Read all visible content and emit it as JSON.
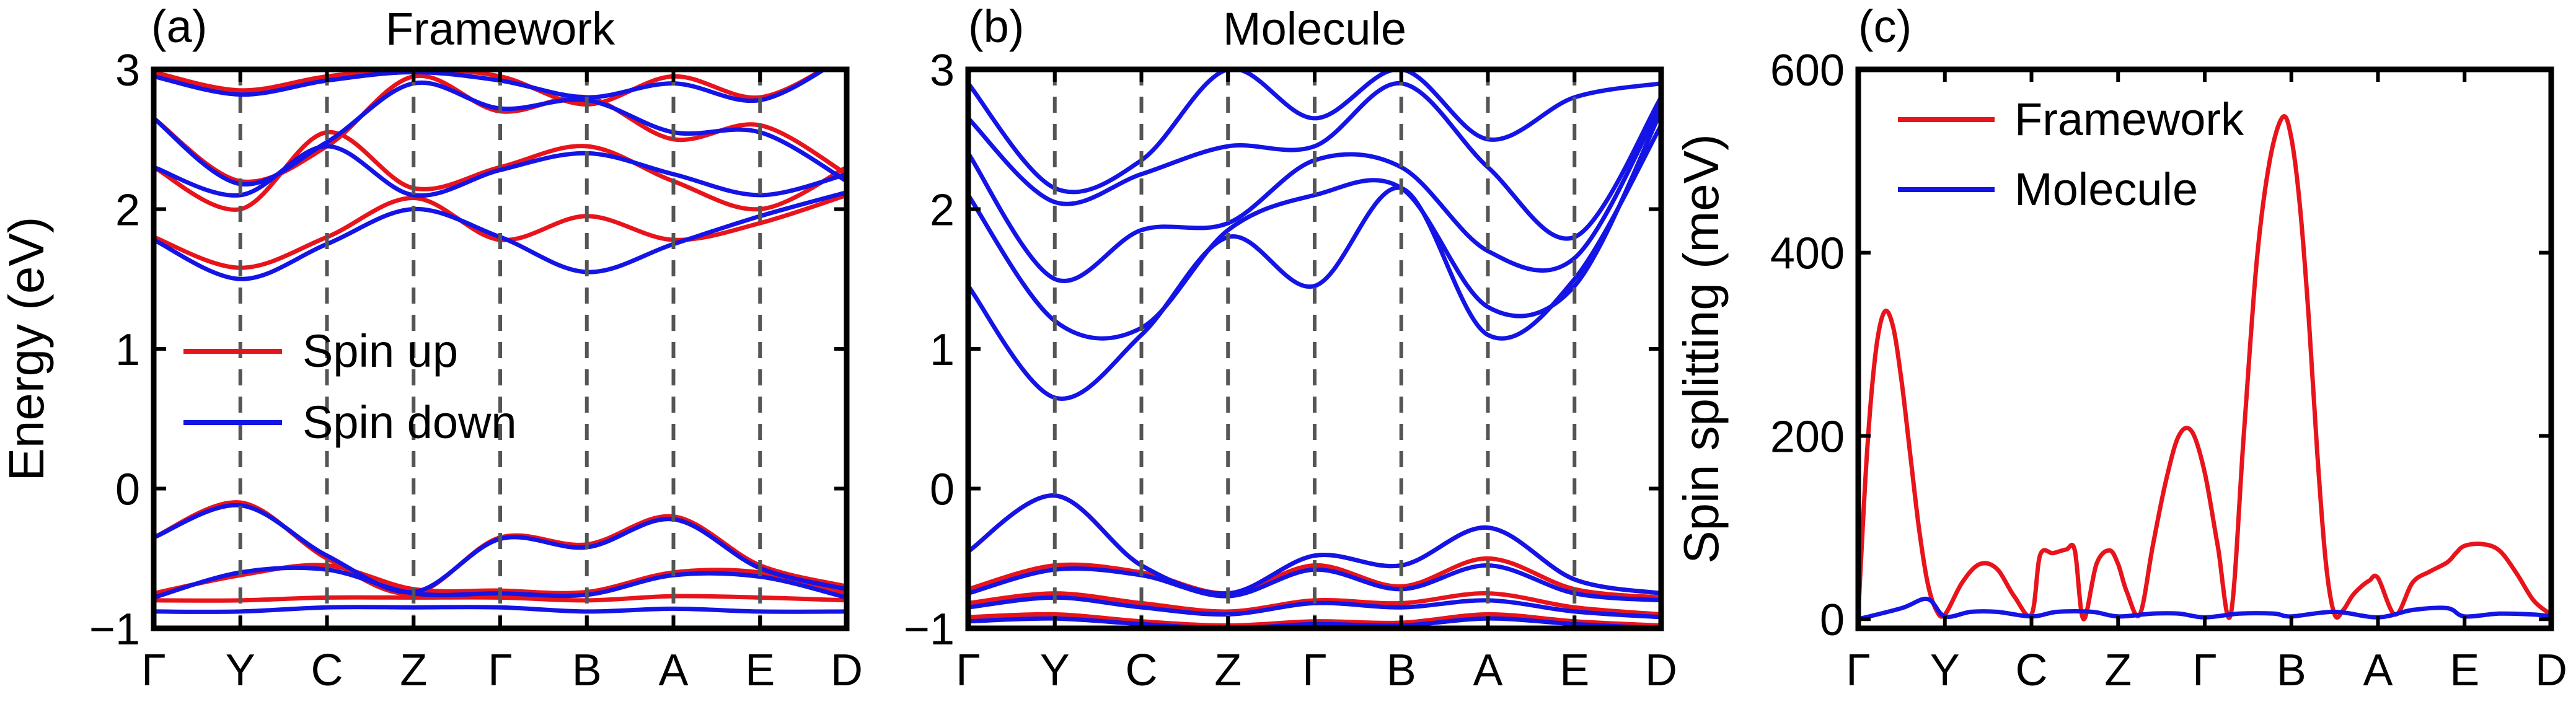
{
  "chart_data": [
    {
      "type": "line",
      "panel_label": "(a)",
      "title": "Framework",
      "ylabel": "Energy (eV)",
      "xlabel": "",
      "ylim": [
        -1,
        3
      ],
      "yticks": [
        -1,
        0,
        1,
        2,
        3
      ],
      "ytick_labels": [
        "−1",
        "0",
        "1",
        "2",
        "3"
      ],
      "kpath": [
        "Γ",
        "Y",
        "C",
        "Z",
        "Γ",
        "B",
        "A",
        "E",
        "D"
      ],
      "kpath_vlines": true,
      "legend": [
        {
          "label": "Spin up",
          "color": "#e8141b"
        },
        {
          "label": "Spin down",
          "color": "#1414e6"
        }
      ],
      "series": [
        {
          "name": "Spin up",
          "color": "#e8141b",
          "bands": [
            {
              "k": [
                0,
                1,
                2,
                3,
                4,
                5,
                6,
                7,
                8
              ],
              "e": [
                -0.35,
                -0.1,
                -0.5,
                -0.75,
                -0.35,
                -0.4,
                -0.2,
                -0.55,
                -0.7
              ]
            },
            {
              "k": [
                0,
                1,
                2,
                3,
                4,
                5,
                6,
                7,
                8
              ],
              "e": [
                -0.75,
                -0.62,
                -0.55,
                -0.72,
                -0.73,
                -0.74,
                -0.6,
                -0.6,
                -0.75
              ]
            },
            {
              "k": [
                0,
                1,
                2,
                3,
                4,
                5,
                6,
                7,
                8
              ],
              "e": [
                -0.8,
                -0.8,
                -0.78,
                -0.78,
                -0.78,
                -0.8,
                -0.77,
                -0.78,
                -0.8
              ]
            },
            {
              "k": [
                0,
                1,
                2,
                3,
                4,
                5,
                6,
                7,
                8
              ],
              "e": [
                1.8,
                1.58,
                1.8,
                2.08,
                1.78,
                1.95,
                1.78,
                1.9,
                2.1
              ]
            },
            {
              "k": [
                0,
                1,
                2,
                3,
                4,
                5,
                6,
                7,
                8
              ],
              "e": [
                2.3,
                2.0,
                2.55,
                2.15,
                2.3,
                2.45,
                2.2,
                2.0,
                2.3
              ]
            },
            {
              "k": [
                0,
                1,
                2,
                3,
                4,
                5,
                6,
                7,
                8
              ],
              "e": [
                2.65,
                2.2,
                2.45,
                2.95,
                2.7,
                2.8,
                2.5,
                2.6,
                2.25
              ]
            },
            {
              "k": [
                0,
                1,
                2,
                3,
                4,
                5,
                6,
                7,
                8
              ],
              "e": [
                2.98,
                2.85,
                2.95,
                3.0,
                2.95,
                2.75,
                2.95,
                2.8,
                3.1
              ]
            }
          ]
        },
        {
          "name": "Spin down",
          "color": "#1414e6",
          "bands": [
            {
              "k": [
                0,
                1,
                2,
                3,
                4,
                5,
                6,
                7,
                8
              ],
              "e": [
                -0.35,
                -0.12,
                -0.48,
                -0.74,
                -0.36,
                -0.42,
                -0.22,
                -0.57,
                -0.72
              ]
            },
            {
              "k": [
                0,
                1,
                2,
                3,
                4,
                5,
                6,
                7,
                8
              ],
              "e": [
                -0.78,
                -0.6,
                -0.58,
                -0.75,
                -0.75,
                -0.76,
                -0.62,
                -0.63,
                -0.78
              ]
            },
            {
              "k": [
                0,
                1,
                2,
                3,
                4,
                5,
                6,
                7,
                8
              ],
              "e": [
                -0.88,
                -0.88,
                -0.85,
                -0.85,
                -0.85,
                -0.88,
                -0.86,
                -0.88,
                -0.88
              ]
            },
            {
              "k": [
                0,
                1,
                2,
                3,
                4,
                5,
                6,
                7,
                8
              ],
              "e": [
                1.78,
                1.5,
                1.75,
                2.0,
                1.8,
                1.55,
                1.75,
                1.95,
                2.12
              ]
            },
            {
              "k": [
                0,
                1,
                2,
                3,
                4,
                5,
                6,
                7,
                8
              ],
              "e": [
                2.3,
                2.1,
                2.45,
                2.1,
                2.28,
                2.4,
                2.25,
                2.1,
                2.25
              ]
            },
            {
              "k": [
                0,
                1,
                2,
                3,
                4,
                5,
                6,
                7,
                8
              ],
              "e": [
                2.65,
                2.18,
                2.48,
                2.9,
                2.72,
                2.78,
                2.55,
                2.55,
                2.2
              ]
            },
            {
              "k": [
                0,
                1,
                2,
                3,
                4,
                5,
                6,
                7,
                8
              ],
              "e": [
                2.95,
                2.82,
                2.92,
                2.98,
                2.92,
                2.8,
                2.9,
                2.78,
                3.1
              ]
            }
          ]
        }
      ]
    },
    {
      "type": "line",
      "panel_label": "(b)",
      "title": "Molecule",
      "ylabel": "",
      "xlabel": "",
      "ylim": [
        -1,
        3
      ],
      "yticks": [
        -1,
        0,
        1,
        2,
        3
      ],
      "ytick_labels": [
        "−1",
        "0",
        "1",
        "2",
        "3"
      ],
      "kpath": [
        "Γ",
        "Y",
        "C",
        "Z",
        "Γ",
        "B",
        "A",
        "E",
        "D"
      ],
      "kpath_vlines": true,
      "series": [
        {
          "name": "Spin up",
          "color": "#e8141b",
          "bands": [
            {
              "k": [
                0,
                1,
                2,
                3,
                4,
                5,
                6,
                7,
                8
              ],
              "e": [
                -0.45,
                -0.05,
                -0.55,
                -0.75,
                -0.48,
                -0.55,
                -0.28,
                -0.65,
                -0.75
              ]
            },
            {
              "k": [
                0,
                1,
                2,
                3,
                4,
                5,
                6,
                7,
                8
              ],
              "e": [
                -0.72,
                -0.55,
                -0.6,
                -0.75,
                -0.55,
                -0.7,
                -0.5,
                -0.72,
                -0.78
              ]
            },
            {
              "k": [
                0,
                1,
                2,
                3,
                4,
                5,
                6,
                7,
                8
              ],
              "e": [
                -0.82,
                -0.75,
                -0.82,
                -0.88,
                -0.8,
                -0.82,
                -0.75,
                -0.85,
                -0.9
              ]
            },
            {
              "k": [
                0,
                1,
                2,
                3,
                4,
                5,
                6,
                7,
                8
              ],
              "e": [
                -0.92,
                -0.9,
                -0.95,
                -0.98,
                -0.95,
                -0.96,
                -0.9,
                -0.95,
                -0.98
              ]
            }
          ]
        },
        {
          "name": "Spin down",
          "color": "#1414e6",
          "bands": [
            {
              "k": [
                0,
                1,
                2,
                3,
                4,
                5,
                6,
                7,
                8
              ],
              "e": [
                -0.45,
                -0.05,
                -0.55,
                -0.75,
                -0.48,
                -0.55,
                -0.28,
                -0.65,
                -0.75
              ]
            },
            {
              "k": [
                0,
                1,
                2,
                3,
                4,
                5,
                6,
                7,
                8
              ],
              "e": [
                -0.75,
                -0.58,
                -0.62,
                -0.77,
                -0.58,
                -0.72,
                -0.55,
                -0.75,
                -0.8
              ]
            },
            {
              "k": [
                0,
                1,
                2,
                3,
                4,
                5,
                6,
                7,
                8
              ],
              "e": [
                -0.85,
                -0.78,
                -0.85,
                -0.9,
                -0.82,
                -0.85,
                -0.8,
                -0.88,
                -0.92
              ]
            },
            {
              "k": [
                0,
                1,
                2,
                3,
                4,
                5,
                6,
                7,
                8
              ],
              "e": [
                -0.95,
                -0.93,
                -0.97,
                -1.0,
                -0.97,
                -0.98,
                -0.93,
                -0.97,
                -1.0
              ]
            },
            {
              "k": [
                0,
                1,
                2,
                3,
                4,
                5,
                6,
                7,
                8
              ],
              "e": [
                1.45,
                0.65,
                1.1,
                1.8,
                1.45,
                2.15,
                1.1,
                1.5,
                2.6
              ]
            },
            {
              "k": [
                0,
                1,
                2,
                3,
                4,
                5,
                6,
                7,
                8
              ],
              "e": [
                2.1,
                1.2,
                1.15,
                1.85,
                2.1,
                2.15,
                1.3,
                1.45,
                2.7
              ]
            },
            {
              "k": [
                0,
                1,
                2,
                3,
                4,
                5,
                6,
                7,
                8
              ],
              "e": [
                2.4,
                1.5,
                1.85,
                1.9,
                2.35,
                2.3,
                1.7,
                1.65,
                2.75
              ]
            },
            {
              "k": [
                0,
                1,
                2,
                3,
                4,
                5,
                6,
                7,
                8
              ],
              "e": [
                2.65,
                2.05,
                2.25,
                2.45,
                2.45,
                2.9,
                2.3,
                1.8,
                2.8
              ]
            },
            {
              "k": [
                0,
                1,
                2,
                3,
                4,
                5,
                6,
                7,
                8
              ],
              "e": [
                2.9,
                2.15,
                2.35,
                3.0,
                2.65,
                3.0,
                2.5,
                2.8,
                2.9
              ]
            }
          ]
        }
      ]
    },
    {
      "type": "line",
      "panel_label": "(c)",
      "title": "",
      "ylabel": "Spin splitting (meV)",
      "xlabel": "",
      "ylim": [
        -10,
        600
      ],
      "yticks": [
        0,
        200,
        400,
        600
      ],
      "ytick_labels": [
        "0",
        "200",
        "400",
        "600"
      ],
      "kpath": [
        "Γ",
        "Y",
        "C",
        "Z",
        "Γ",
        "B",
        "A",
        "E",
        "D"
      ],
      "kpath_vlines": false,
      "legend": [
        {
          "label": "Framework",
          "color": "#e8141b"
        },
        {
          "label": "Molecule",
          "color": "#1414e6"
        }
      ],
      "series": [
        {
          "name": "Framework",
          "color": "#e8141b",
          "x": [
            0,
            0.1,
            0.2,
            0.3,
            0.4,
            0.5,
            0.6,
            0.7,
            0.8,
            0.9,
            1.0,
            1.2,
            1.4,
            1.6,
            1.8,
            2.0,
            2.1,
            2.25,
            2.4,
            2.5,
            2.6,
            2.75,
            2.9,
            3.0,
            3.1,
            3.25,
            3.4,
            3.55,
            3.7,
            3.85,
            4.0,
            4.15,
            4.3,
            4.45,
            4.6,
            4.75,
            4.9,
            5.0,
            5.1,
            5.2,
            5.3,
            5.4,
            5.5,
            5.6,
            5.7,
            5.8,
            5.9,
            6.0,
            6.2,
            6.4,
            6.6,
            6.8,
            6.9,
            7.0,
            7.2,
            7.4,
            7.6,
            7.8,
            8.0
          ],
          "values": [
            5,
            180,
            290,
            335,
            320,
            260,
            180,
            100,
            40,
            10,
            5,
            40,
            60,
            55,
            25,
            5,
            70,
            72,
            76,
            75,
            0,
            60,
            75,
            60,
            30,
            5,
            80,
            150,
            200,
            205,
            160,
            80,
            5,
            200,
            390,
            500,
            548,
            525,
            450,
            330,
            180,
            60,
            5,
            10,
            25,
            35,
            42,
            45,
            5,
            40,
            52,
            62,
            72,
            80,
            82,
            75,
            50,
            20,
            5
          ]
        },
        {
          "name": "Molecule",
          "color": "#1414e6",
          "x": [
            0,
            0.5,
            0.8,
            1.0,
            1.3,
            1.6,
            2.0,
            2.3,
            2.7,
            3.0,
            3.4,
            3.7,
            4.0,
            4.4,
            4.8,
            5.0,
            5.5,
            6.0,
            6.4,
            6.8,
            7.0,
            7.4,
            7.8,
            8.0
          ],
          "values": [
            0,
            12,
            22,
            3,
            8,
            8,
            3,
            8,
            8,
            3,
            6,
            6,
            2,
            6,
            6,
            3,
            8,
            2,
            10,
            12,
            3,
            6,
            5,
            3
          ]
        }
      ]
    }
  ]
}
